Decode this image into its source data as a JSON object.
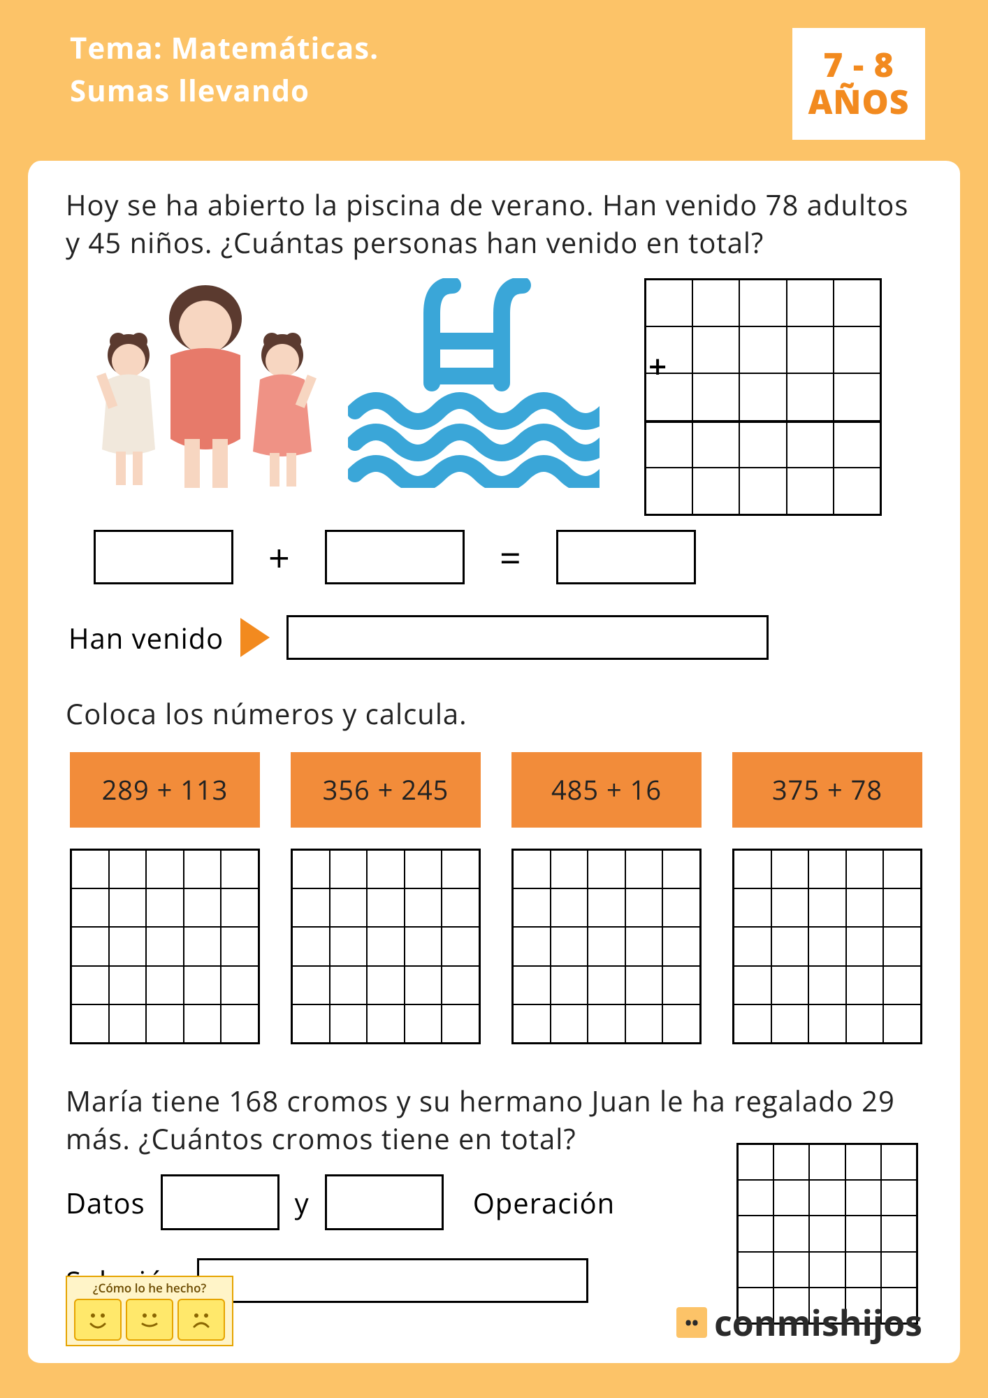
{
  "colors": {
    "page_bg": "#fcc368",
    "sheet_bg": "#ffffff",
    "title_text": "#ffffff",
    "accent_orange": "#f28a1f",
    "chip_bg": "#f28c3a",
    "text": "#222222",
    "pool_blue": "#3aa6d8",
    "border": "#000000"
  },
  "header": {
    "title_line1": "Tema: Matemáticas.",
    "title_line2": "Sumas llevando",
    "age_line1": "7 - 8",
    "age_line2": "AÑOS"
  },
  "q1": {
    "text": "Hoy se ha abierto la piscina de verano. Han venido 78 adultos y 45 niños. ¿Cuántas personas han venido en total?",
    "op_plus": "+",
    "op_eq": "=",
    "answer_label": "Han venido",
    "grid": {
      "rows": 5,
      "cols": 5,
      "divider_after_row": 3,
      "plus_in_row": 2
    }
  },
  "section2": {
    "heading": "Coloca los números y calcula.",
    "problems": [
      "289 + 113",
      "356 + 245",
      "485 + 16",
      "375 + 78"
    ],
    "grid": {
      "rows": 5,
      "cols": 5
    }
  },
  "q3": {
    "text": "María tiene 168 cromos y su hermano Juan le ha regalado 29 más. ¿Cuántos cromos tiene en total?",
    "datos_label": "Datos",
    "y_label": "y",
    "operacion_label": "Operación",
    "solucion_label": "Solución",
    "grid": {
      "rows": 5,
      "cols": 5
    }
  },
  "footer": {
    "rating_title": "¿Cómo lo he hecho?",
    "brand": "conmishijos"
  }
}
